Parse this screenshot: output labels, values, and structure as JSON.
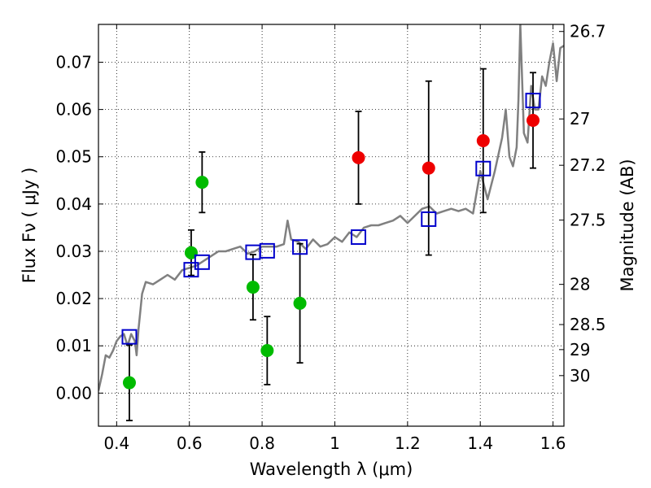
{
  "chart_data": {
    "type": "scatter",
    "xlabel": "Wavelength  λ (μm)",
    "ylabel_left": "Flux  Fν  ( μJy )",
    "ylabel_right": "Magnitude (AB)",
    "xlim": [
      0.35,
      1.63
    ],
    "ylim": [
      -0.007,
      0.078
    ],
    "x_ticks": [
      0.4,
      0.6,
      0.8,
      1.0,
      1.2,
      1.4,
      1.6
    ],
    "x_tick_labels": [
      "0.4",
      "0.6",
      "0.8",
      "1",
      "1.2",
      "1.4",
      "1.6"
    ],
    "y_ticks": [
      0.0,
      0.01,
      0.02,
      0.03,
      0.04,
      0.05,
      0.06,
      0.07
    ],
    "y_tick_labels": [
      "0.00",
      "0.01",
      "0.02",
      "0.03",
      "0.04",
      "0.05",
      "0.06",
      "0.07"
    ],
    "magnitude_ticks": [
      {
        "label": "26.7",
        "flux": 0.0765
      },
      {
        "label": "27",
        "flux": 0.058
      },
      {
        "label": "27.2",
        "flux": 0.0482
      },
      {
        "label": "27.5",
        "flux": 0.0366
      },
      {
        "label": "28",
        "flux": 0.023
      },
      {
        "label": "28.5",
        "flux": 0.0145
      },
      {
        "label": "29",
        "flux": 0.0092
      },
      {
        "label": "30",
        "flux": 0.0037
      }
    ],
    "grid": true,
    "colors": {
      "green_points": "#00bb00",
      "red_points": "#ee0000",
      "model_squares": "#0000cc",
      "sed_line": "#808080",
      "errorbars": "#000000"
    },
    "series": [
      {
        "marker": "green-circle",
        "points": [
          {
            "x": 0.435,
            "y": 0.0022,
            "err": 0.008
          },
          {
            "x": 0.605,
            "y": 0.0297,
            "err": 0.0048
          },
          {
            "x": 0.635,
            "y": 0.0446,
            "err": 0.0064
          },
          {
            "x": 0.775,
            "y": 0.0224,
            "err": 0.0069
          },
          {
            "x": 0.814,
            "y": 0.009,
            "err": 0.0072
          },
          {
            "x": 0.904,
            "y": 0.019,
            "err": 0.0126
          }
        ]
      },
      {
        "marker": "red-circle",
        "points": [
          {
            "x": 1.065,
            "y": 0.0498,
            "err": 0.0098
          },
          {
            "x": 1.258,
            "y": 0.0476,
            "err": 0.0184
          },
          {
            "x": 1.408,
            "y": 0.0534,
            "err": 0.0152
          },
          {
            "x": 1.545,
            "y": 0.0577,
            "err": 0.0101
          }
        ]
      },
      {
        "marker": "blue-open-square",
        "points": [
          {
            "x": 0.435,
            "y": 0.0119
          },
          {
            "x": 0.605,
            "y": 0.0261
          },
          {
            "x": 0.635,
            "y": 0.0277
          },
          {
            "x": 0.775,
            "y": 0.0298
          },
          {
            "x": 0.814,
            "y": 0.0301
          },
          {
            "x": 0.904,
            "y": 0.0309
          },
          {
            "x": 1.065,
            "y": 0.033
          },
          {
            "x": 1.258,
            "y": 0.0368
          },
          {
            "x": 1.408,
            "y": 0.0475
          },
          {
            "x": 1.545,
            "y": 0.0619
          }
        ]
      },
      {
        "marker": "gray-line",
        "x": [
          0.35,
          0.36,
          0.37,
          0.38,
          0.39,
          0.4,
          0.41,
          0.42,
          0.43,
          0.44,
          0.45,
          0.455,
          0.46,
          0.47,
          0.48,
          0.5,
          0.52,
          0.54,
          0.56,
          0.58,
          0.6,
          0.62,
          0.64,
          0.66,
          0.68,
          0.7,
          0.72,
          0.74,
          0.76,
          0.78,
          0.8,
          0.82,
          0.84,
          0.86,
          0.87,
          0.88,
          0.9,
          0.92,
          0.94,
          0.96,
          0.98,
          1.0,
          1.02,
          1.04,
          1.06,
          1.08,
          1.1,
          1.12,
          1.14,
          1.16,
          1.18,
          1.2,
          1.22,
          1.24,
          1.26,
          1.28,
          1.3,
          1.32,
          1.34,
          1.36,
          1.38,
          1.4,
          1.42,
          1.44,
          1.46,
          1.47,
          1.48,
          1.49,
          1.5,
          1.505,
          1.51,
          1.52,
          1.53,
          1.54,
          1.55,
          1.56,
          1.57,
          1.58,
          1.59,
          1.6,
          1.61,
          1.62,
          1.63
        ],
        "y": [
          0.0005,
          0.004,
          0.008,
          0.0075,
          0.009,
          0.011,
          0.012,
          0.0125,
          0.01,
          0.0125,
          0.011,
          0.008,
          0.0135,
          0.021,
          0.0235,
          0.023,
          0.024,
          0.025,
          0.024,
          0.026,
          0.0265,
          0.027,
          0.028,
          0.029,
          0.03,
          0.03,
          0.0305,
          0.031,
          0.0295,
          0.03,
          0.031,
          0.031,
          0.031,
          0.0315,
          0.0365,
          0.0325,
          0.032,
          0.0305,
          0.0325,
          0.031,
          0.0315,
          0.033,
          0.032,
          0.034,
          0.033,
          0.035,
          0.0355,
          0.0355,
          0.036,
          0.0365,
          0.0375,
          0.036,
          0.0375,
          0.039,
          0.0395,
          0.038,
          0.0385,
          0.039,
          0.0385,
          0.039,
          0.038,
          0.047,
          0.041,
          0.047,
          0.054,
          0.06,
          0.05,
          0.048,
          0.052,
          0.062,
          0.078,
          0.055,
          0.053,
          0.065,
          0.06,
          0.06,
          0.067,
          0.065,
          0.07,
          0.074,
          0.066,
          0.073,
          0.0735
        ]
      }
    ]
  }
}
